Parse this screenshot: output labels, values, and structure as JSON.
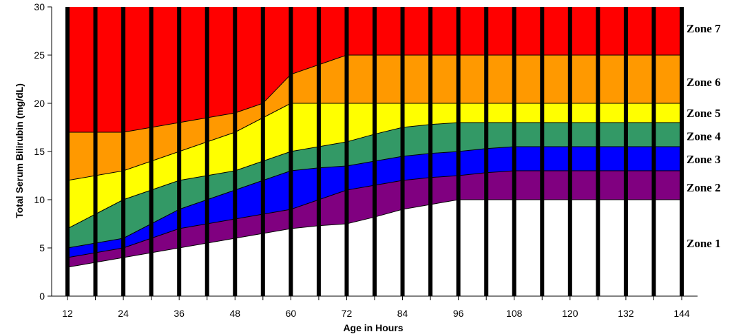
{
  "chart_data": {
    "type": "area",
    "title": "",
    "xlabel": "Age in Hours",
    "ylabel": "Total Serum Bilirubin (mg/dL)",
    "xlim": [
      12,
      144
    ],
    "ylim": [
      0,
      30
    ],
    "x_ticks": [
      12,
      24,
      36,
      48,
      60,
      72,
      84,
      96,
      108,
      120,
      132,
      144
    ],
    "y_ticks": [
      0,
      5,
      10,
      15,
      20,
      25,
      30
    ],
    "vertical_bars_every_hours": 6,
    "x": [
      12,
      18,
      24,
      30,
      36,
      42,
      48,
      54,
      60,
      66,
      72,
      78,
      84,
      90,
      96,
      102,
      108,
      114,
      120,
      126,
      132,
      138,
      144
    ],
    "boundaries": [
      {
        "name": "b1",
        "values": [
          3,
          3.5,
          4,
          4.5,
          5,
          5.5,
          6,
          6.5,
          7,
          7.3,
          7.5,
          8.2,
          9,
          9.5,
          10,
          10,
          10,
          10,
          10,
          10,
          10,
          10,
          10
        ]
      },
      {
        "name": "b2",
        "values": [
          4,
          4.5,
          5,
          6,
          7,
          7.5,
          8,
          8.5,
          9,
          10,
          11,
          11.5,
          12,
          12.3,
          12.5,
          12.8,
          13,
          13,
          13,
          13,
          13,
          13,
          13
        ]
      },
      {
        "name": "b3",
        "values": [
          5,
          5.5,
          6,
          7.5,
          9,
          10,
          11,
          12,
          13,
          13.3,
          13.5,
          14,
          14.5,
          14.8,
          15,
          15.3,
          15.5,
          15.5,
          15.5,
          15.5,
          15.5,
          15.5,
          15.5
        ]
      },
      {
        "name": "b4",
        "values": [
          7,
          8.5,
          10,
          11,
          12,
          12.5,
          13,
          14,
          15,
          15.5,
          16,
          16.8,
          17.5,
          17.8,
          18,
          18,
          18,
          18,
          18,
          18,
          18,
          18,
          18
        ]
      },
      {
        "name": "b5",
        "values": [
          12,
          12.5,
          13,
          14,
          15,
          16,
          17,
          18.5,
          20,
          20,
          20,
          20,
          20,
          20,
          20,
          20,
          20,
          20,
          20,
          20,
          20,
          20,
          20
        ]
      },
      {
        "name": "b6",
        "values": [
          17,
          17,
          17,
          17.5,
          18,
          18.5,
          19,
          20,
          23,
          24,
          25,
          25,
          25,
          25,
          25,
          25,
          25,
          25,
          25,
          25,
          25,
          25,
          25
        ]
      }
    ],
    "zones": [
      {
        "label": "Zone 1",
        "color": "#ffffff",
        "label_y": 5.5
      },
      {
        "label": "Zone 2",
        "color": "#800080",
        "label_y": 11.3
      },
      {
        "label": "Zone 3",
        "color": "#0000ff",
        "label_y": 14.2
      },
      {
        "label": "Zone 4",
        "color": "#339966",
        "label_y": 16.6
      },
      {
        "label": "Zone 5",
        "color": "#ffff00",
        "label_y": 19.0
      },
      {
        "label": "Zone 6",
        "color": "#ff9900",
        "label_y": 22.2
      },
      {
        "label": "Zone 7",
        "color": "#ff0000",
        "label_y": 27.8
      }
    ],
    "grid": false,
    "legend": "none"
  }
}
